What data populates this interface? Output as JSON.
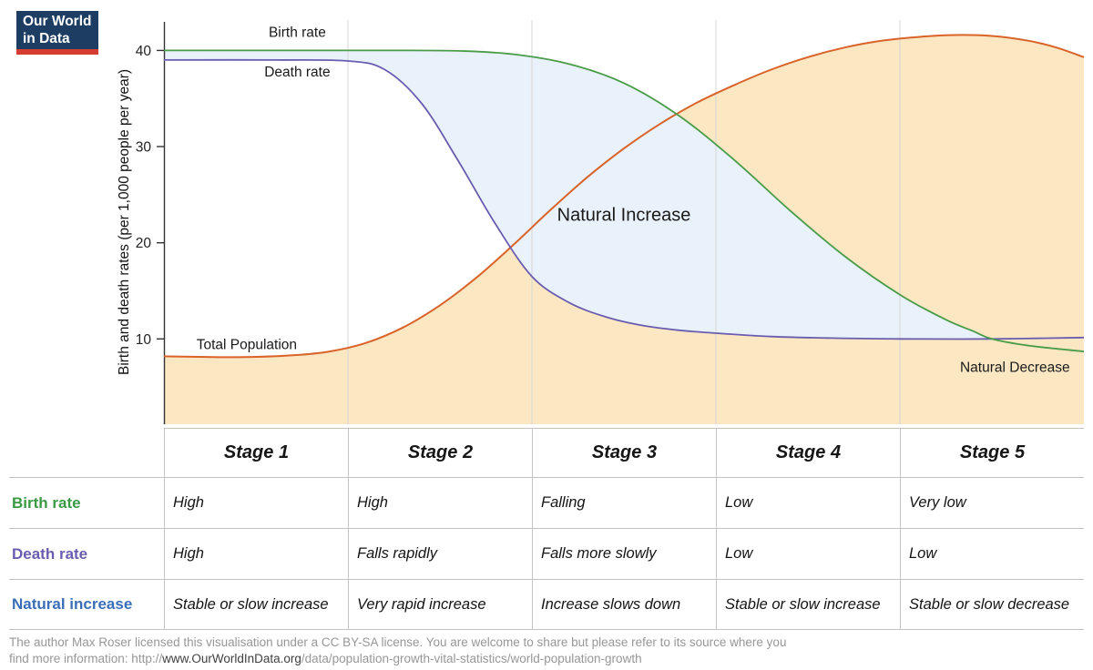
{
  "logo": {
    "line1": "Our World",
    "line2": "in Data"
  },
  "chart_data": {
    "type": "area",
    "title": "",
    "ylabel": "Birth and death rates (per 1,000 people per year)",
    "xlabel": "",
    "ylim": [
      0,
      43
    ],
    "yticks": [
      10,
      20,
      30,
      40
    ],
    "x_range": [
      0,
      100
    ],
    "grid": "vertical-stage-boundaries",
    "stages": [
      "Stage 1",
      "Stage 2",
      "Stage 3",
      "Stage 4",
      "Stage 5"
    ],
    "series": [
      {
        "name": "Birth rate",
        "color": "#4a9c49",
        "points": [
          [
            0,
            40
          ],
          [
            12,
            40
          ],
          [
            24,
            40
          ],
          [
            32,
            39.95
          ],
          [
            38,
            39.6
          ],
          [
            44,
            38.6
          ],
          [
            50,
            36.6
          ],
          [
            56,
            33.2
          ],
          [
            62,
            28.6
          ],
          [
            68,
            23.4
          ],
          [
            74,
            18.6
          ],
          [
            80,
            14.6
          ],
          [
            85,
            12
          ],
          [
            88,
            10.8
          ],
          [
            90,
            10
          ],
          [
            94,
            9.3
          ],
          [
            100,
            8.7
          ]
        ]
      },
      {
        "name": "Death rate",
        "color": "#6a5daf",
        "points": [
          [
            0,
            39
          ],
          [
            12,
            39
          ],
          [
            20,
            38.9
          ],
          [
            24,
            38
          ],
          [
            28,
            34.5
          ],
          [
            32,
            28.5
          ],
          [
            36,
            22
          ],
          [
            40,
            16.5
          ],
          [
            44,
            13.8
          ],
          [
            48,
            12.3
          ],
          [
            52,
            11.4
          ],
          [
            56,
            10.9
          ],
          [
            60,
            10.6
          ],
          [
            66,
            10.25
          ],
          [
            72,
            10.1
          ],
          [
            80,
            10
          ],
          [
            90,
            10
          ],
          [
            100,
            10.15
          ]
        ]
      },
      {
        "name": "Total Population",
        "color": "#d9632a",
        "points": [
          [
            0,
            8.2
          ],
          [
            8,
            8.1
          ],
          [
            14,
            8.3
          ],
          [
            18,
            8.7
          ],
          [
            22,
            9.6
          ],
          [
            26,
            11.2
          ],
          [
            30,
            13.5
          ],
          [
            34,
            16.4
          ],
          [
            38,
            19.8
          ],
          [
            42,
            23.4
          ],
          [
            46,
            26.8
          ],
          [
            50,
            29.8
          ],
          [
            54,
            32.4
          ],
          [
            58,
            34.6
          ],
          [
            62,
            36.4
          ],
          [
            66,
            38
          ],
          [
            70,
            39.3
          ],
          [
            74,
            40.3
          ],
          [
            78,
            41
          ],
          [
            82,
            41.4
          ],
          [
            86,
            41.6
          ],
          [
            90,
            41.5
          ],
          [
            94,
            41
          ],
          [
            97,
            40.3
          ],
          [
            100,
            39.3
          ]
        ]
      }
    ],
    "bands": [
      {
        "name": "Natural Increase",
        "between": [
          "Birth rate",
          "Death rate"
        ],
        "x_end": 90,
        "color": "#e9f1fb"
      }
    ],
    "colors": {
      "population_fill": "#fbe7c2",
      "natural_increase_fill": "#e9f1fb",
      "grid": "#d6d6d6",
      "axis": "#333333",
      "text": "#1a1a1a"
    },
    "annotations": [
      {
        "text": "Birth rate",
        "x": 14.5,
        "v": 41.4,
        "size": 15.5
      },
      {
        "text": "Death rate",
        "x": 14.5,
        "v": 37.3,
        "size": 15.5
      },
      {
        "text": "Total Population",
        "x": 9,
        "v": 8.95,
        "size": 15.5
      },
      {
        "text": "Natural Increase",
        "x": 50,
        "v": 22.3,
        "size": 20
      },
      {
        "text": "Natural Decrease",
        "x": 92.5,
        "v": 6.6,
        "size": 15.5
      }
    ]
  },
  "table": {
    "rows": [
      {
        "label": "Birth rate",
        "color": "#3a9a46",
        "cells": [
          "High",
          "High",
          "Falling",
          "Low",
          "Very low"
        ]
      },
      {
        "label": "Death rate",
        "color": "#6a5daf",
        "cells": [
          "High",
          "Falls rapidly",
          "Falls more slowly",
          "Low",
          "Low"
        ]
      },
      {
        "label": "Natural increase",
        "color": "#3a6fb7",
        "cells": [
          "Stable or slow increase",
          "Very rapid increase",
          "Increase slows down",
          "Stable or slow increase",
          "Stable or slow decrease"
        ]
      }
    ]
  },
  "footer": {
    "line1": "The author Max Roser licensed this visualisation under a CC BY-SA license. You are welcome to share but please refer to its source where you",
    "line2_prefix": "find more information: http://",
    "line2_url": "www.OurWorldInData.org",
    "line2_suffix": "/data/population-growth-vital-statistics/world-population-growth"
  }
}
